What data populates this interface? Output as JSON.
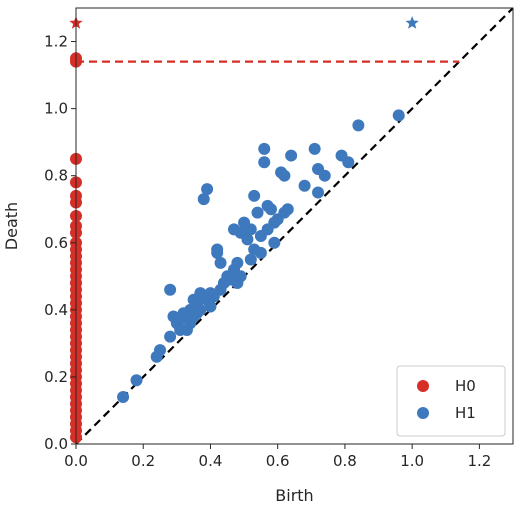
{
  "chart_data": {
    "type": "scatter",
    "xlabel": "Birth",
    "ylabel": "Death",
    "xlim": [
      0,
      1.3
    ],
    "ylim": [
      0,
      1.3
    ],
    "xticks": [
      "0.0",
      "0.2",
      "0.4",
      "0.6",
      "0.8",
      "1.0",
      "1.2"
    ],
    "yticks": [
      "0.0",
      "0.2",
      "0.4",
      "0.6",
      "0.8",
      "1.0",
      "1.2"
    ],
    "grid": false,
    "legend": "bottom-right",
    "diagonal": {
      "style": "dashed",
      "color": "#000000"
    },
    "series": [
      {
        "name": "H0",
        "color": "#d62f27",
        "marker": "circle",
        "points": [
          [
            0,
            0.02
          ],
          [
            0,
            0.04
          ],
          [
            0,
            0.06
          ],
          [
            0,
            0.08
          ],
          [
            0,
            0.1
          ],
          [
            0,
            0.12
          ],
          [
            0,
            0.14
          ],
          [
            0,
            0.16
          ],
          [
            0,
            0.18
          ],
          [
            0,
            0.2
          ],
          [
            0,
            0.22
          ],
          [
            0,
            0.24
          ],
          [
            0,
            0.26
          ],
          [
            0,
            0.28
          ],
          [
            0,
            0.3
          ],
          [
            0,
            0.32
          ],
          [
            0,
            0.34
          ],
          [
            0,
            0.36
          ],
          [
            0,
            0.38
          ],
          [
            0,
            0.4
          ],
          [
            0,
            0.42
          ],
          [
            0,
            0.44
          ],
          [
            0,
            0.46
          ],
          [
            0,
            0.48
          ],
          [
            0,
            0.5
          ],
          [
            0,
            0.52
          ],
          [
            0,
            0.54
          ],
          [
            0,
            0.56
          ],
          [
            0,
            0.58
          ],
          [
            0,
            0.6
          ],
          [
            0,
            0.63
          ],
          [
            0,
            0.65
          ],
          [
            0,
            0.68
          ],
          [
            0,
            0.72
          ],
          [
            0,
            0.74
          ],
          [
            0,
            0.78
          ],
          [
            0,
            0.85
          ],
          [
            0,
            1.14
          ],
          [
            0,
            1.15
          ]
        ]
      },
      {
        "name": "H1",
        "color": "#3f79bd",
        "marker": "circle",
        "points": [
          [
            0.14,
            0.14
          ],
          [
            0.18,
            0.19
          ],
          [
            0.24,
            0.26
          ],
          [
            0.25,
            0.28
          ],
          [
            0.28,
            0.46
          ],
          [
            0.28,
            0.32
          ],
          [
            0.29,
            0.38
          ],
          [
            0.3,
            0.36
          ],
          [
            0.31,
            0.37
          ],
          [
            0.31,
            0.34
          ],
          [
            0.32,
            0.39
          ],
          [
            0.33,
            0.34
          ],
          [
            0.33,
            0.38
          ],
          [
            0.34,
            0.4
          ],
          [
            0.34,
            0.36
          ],
          [
            0.35,
            0.43
          ],
          [
            0.35,
            0.38
          ],
          [
            0.36,
            0.42
          ],
          [
            0.36,
            0.39
          ],
          [
            0.37,
            0.45
          ],
          [
            0.37,
            0.4
          ],
          [
            0.38,
            0.44
          ],
          [
            0.38,
            0.73
          ],
          [
            0.39,
            0.76
          ],
          [
            0.39,
            0.43
          ],
          [
            0.4,
            0.41
          ],
          [
            0.4,
            0.45
          ],
          [
            0.41,
            0.44
          ],
          [
            0.42,
            0.58
          ],
          [
            0.42,
            0.57
          ],
          [
            0.43,
            0.54
          ],
          [
            0.43,
            0.46
          ],
          [
            0.44,
            0.48
          ],
          [
            0.45,
            0.5
          ],
          [
            0.46,
            0.49
          ],
          [
            0.47,
            0.52
          ],
          [
            0.47,
            0.64
          ],
          [
            0.48,
            0.48
          ],
          [
            0.48,
            0.54
          ],
          [
            0.49,
            0.5
          ],
          [
            0.49,
            0.63
          ],
          [
            0.5,
            0.66
          ],
          [
            0.51,
            0.61
          ],
          [
            0.52,
            0.64
          ],
          [
            0.52,
            0.55
          ],
          [
            0.53,
            0.58
          ],
          [
            0.53,
            0.74
          ],
          [
            0.54,
            0.69
          ],
          [
            0.55,
            0.62
          ],
          [
            0.55,
            0.57
          ],
          [
            0.56,
            0.88
          ],
          [
            0.56,
            0.84
          ],
          [
            0.57,
            0.71
          ],
          [
            0.57,
            0.64
          ],
          [
            0.58,
            0.7
          ],
          [
            0.59,
            0.6
          ],
          [
            0.59,
            0.66
          ],
          [
            0.6,
            0.67
          ],
          [
            0.61,
            0.81
          ],
          [
            0.62,
            0.8
          ],
          [
            0.62,
            0.69
          ],
          [
            0.63,
            0.7
          ],
          [
            0.64,
            0.86
          ],
          [
            0.68,
            0.77
          ],
          [
            0.71,
            0.88
          ],
          [
            0.72,
            0.75
          ],
          [
            0.72,
            0.82
          ],
          [
            0.74,
            0.8
          ],
          [
            0.79,
            0.86
          ],
          [
            0.81,
            0.84
          ],
          [
            0.84,
            0.95
          ],
          [
            0.96,
            0.98
          ]
        ]
      },
      {
        "name": "",
        "color": "#3f79bd",
        "marker": "star",
        "points": [
          [
            1.0,
            1.255
          ]
        ]
      },
      {
        "name": "",
        "color": "#d62f27",
        "marker": "star",
        "points": [
          [
            0.0,
            1.255
          ]
        ]
      }
    ],
    "hline": {
      "y": 1.14,
      "x_from": 0,
      "x_to": 1.14,
      "color": "#d62f27",
      "style": "dashed"
    }
  }
}
